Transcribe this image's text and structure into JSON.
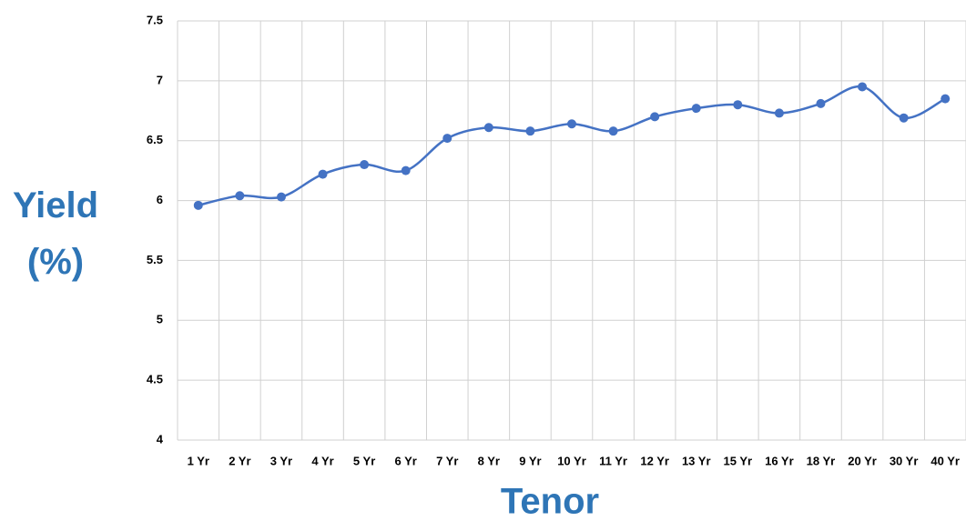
{
  "chart_data": {
    "type": "line",
    "x_label": "Tenor",
    "y_label": "Yield (%)",
    "categories": [
      "1 Yr",
      "2 Yr",
      "3 Yr",
      "4 Yr",
      "5 Yr",
      "6 Yr",
      "7 Yr",
      "8 Yr",
      "9 Yr",
      "10 Yr",
      "11 Yr",
      "12 Yr",
      "13 Yr",
      "15 Yr",
      "16 Yr",
      "18 Yr",
      "20 Yr",
      "30 Yr",
      "40 Yr"
    ],
    "series": [
      {
        "color": "#4472c4",
        "values": [
          5.96,
          6.04,
          6.03,
          6.22,
          6.3,
          6.25,
          6.52,
          6.61,
          6.58,
          6.64,
          6.58,
          6.7,
          6.77,
          6.8,
          6.73,
          6.81,
          6.95,
          6.69,
          6.85
        ]
      }
    ],
    "ylim": [
      4,
      7.5
    ],
    "yticks": [
      4,
      4.5,
      5,
      5.5,
      6,
      6.5,
      7,
      7.5
    ],
    "grid": true
  }
}
